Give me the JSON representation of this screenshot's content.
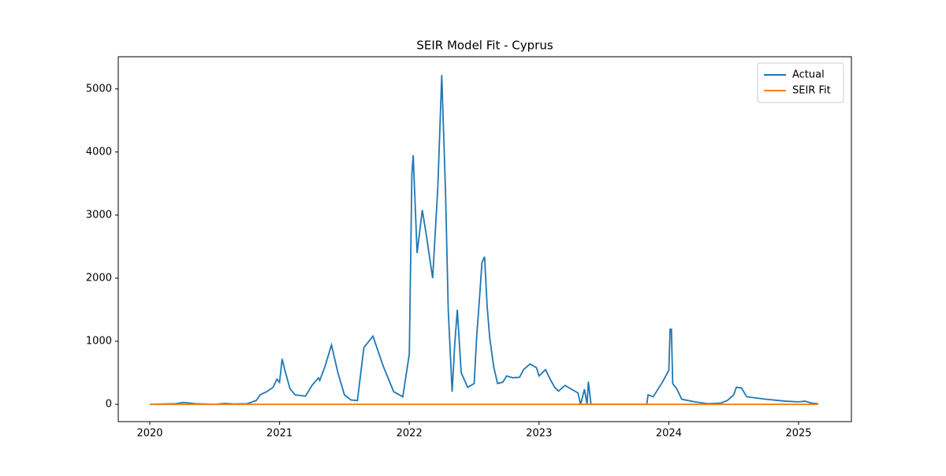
{
  "chart_data": {
    "type": "line",
    "title": "SEIR Model Fit - Cyprus",
    "series": [
      {
        "name": "Actual",
        "color": "#1f77b4",
        "x": [
          2020.0,
          2020.2,
          2020.26,
          2020.35,
          2020.5,
          2020.58,
          2020.65,
          2020.75,
          2020.82,
          2020.85,
          2020.9,
          2020.95,
          2020.98,
          2021.0,
          2021.02,
          2021.04,
          2021.08,
          2021.12,
          2021.2,
          2021.25,
          2021.3,
          2021.31,
          2021.35,
          2021.4,
          2021.45,
          2021.5,
          2021.55,
          2021.6,
          2021.65,
          2021.72,
          2021.8,
          2021.88,
          2021.95,
          2022.0,
          2022.02,
          2022.03,
          2022.06,
          2022.1,
          2022.13,
          2022.18,
          2022.22,
          2022.25,
          2022.28,
          2022.3,
          2022.33,
          2022.35,
          2022.37,
          2022.4,
          2022.45,
          2022.5,
          2022.52,
          2022.54,
          2022.56,
          2022.58,
          2022.6,
          2022.62,
          2022.65,
          2022.68,
          2022.72,
          2022.75,
          2022.8,
          2022.85,
          2022.88,
          2022.93,
          2022.98,
          2023.0,
          2023.05,
          2023.08,
          2023.12,
          2023.15,
          2023.2,
          2023.25,
          2023.3,
          2023.32,
          2023.35,
          2023.37,
          2023.38,
          2023.4,
          2023.83,
          2023.84,
          2023.88,
          2023.95,
          2024.0,
          2024.01,
          2024.02,
          2024.03,
          2024.06,
          2024.1,
          2024.2,
          2024.3,
          2024.4,
          2024.45,
          2024.5,
          2024.52,
          2024.56,
          2024.6,
          2024.75,
          2024.9,
          2025.0,
          2025.05,
          2025.1,
          2025.15
        ],
        "values": [
          0,
          10,
          30,
          10,
          0,
          15,
          5,
          10,
          60,
          150,
          200,
          270,
          400,
          350,
          720,
          550,
          250,
          150,
          130,
          300,
          420,
          380,
          600,
          940,
          500,
          150,
          70,
          60,
          900,
          1080,
          600,
          200,
          120,
          800,
          3650,
          3950,
          2400,
          3080,
          2700,
          2000,
          3450,
          5220,
          3300,
          1500,
          200,
          950,
          1500,
          500,
          270,
          330,
          1100,
          1650,
          2250,
          2340,
          1550,
          1050,
          600,
          330,
          350,
          450,
          420,
          430,
          550,
          640,
          580,
          450,
          550,
          420,
          270,
          210,
          300,
          240,
          180,
          0,
          240,
          0,
          360,
          0,
          0,
          150,
          120,
          350,
          540,
          1190,
          1190,
          330,
          250,
          80,
          40,
          10,
          20,
          60,
          150,
          270,
          260,
          120,
          80,
          50,
          40,
          50,
          20,
          10
        ]
      },
      {
        "name": "SEIR Fit",
        "color": "#ff7f0e",
        "x": [
          2020.0,
          2025.15
        ],
        "values": [
          0,
          0
        ]
      }
    ],
    "xlim": [
      2019.757,
      2025.407
    ],
    "xticks": [
      2020,
      2021,
      2022,
      2023,
      2024,
      2025
    ],
    "ylim": [
      -274,
      5510
    ],
    "yticks": [
      0,
      1000,
      2000,
      3000,
      4000,
      5000
    ],
    "legend": "upper right"
  }
}
